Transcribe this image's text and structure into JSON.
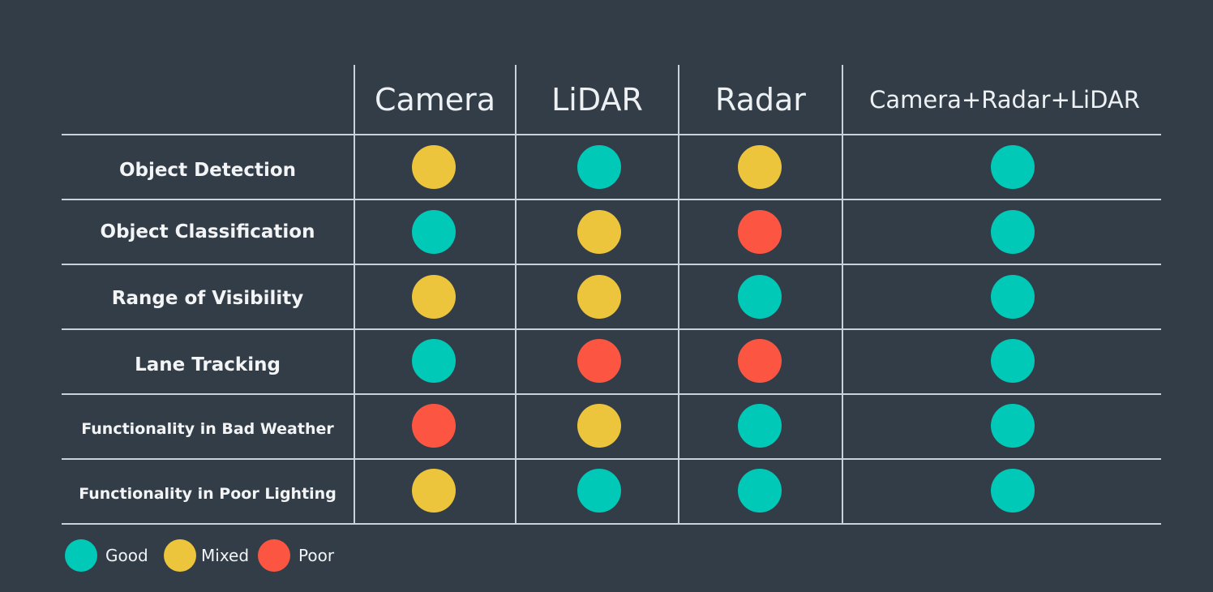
{
  "colors": {
    "good": "#00c9b7",
    "mixed": "#ecc53c",
    "poor": "#fc5642",
    "background": "#323d48",
    "grid": "#c8d2db"
  },
  "columns": [
    "Camera",
    "LiDAR",
    "Radar",
    "Camera+Radar+LiDAR"
  ],
  "rows": [
    {
      "label": "Object Detection",
      "ratings": [
        "mixed",
        "good",
        "mixed",
        "good"
      ]
    },
    {
      "label": "Object Classification",
      "ratings": [
        "good",
        "mixed",
        "poor",
        "good"
      ]
    },
    {
      "label": "Range of Visibility",
      "ratings": [
        "mixed",
        "mixed",
        "good",
        "good"
      ]
    },
    {
      "label": "Lane Tracking",
      "ratings": [
        "good",
        "poor",
        "poor",
        "good"
      ]
    },
    {
      "label": "Functionality in Bad Weather",
      "ratings": [
        "poor",
        "mixed",
        "good",
        "good"
      ]
    },
    {
      "label": "Functionality in Poor Lighting",
      "ratings": [
        "mixed",
        "good",
        "good",
        "good"
      ]
    }
  ],
  "legend": [
    {
      "key": "good",
      "label": "Good"
    },
    {
      "key": "mixed",
      "label": "Mixed"
    },
    {
      "key": "poor",
      "label": "Poor"
    }
  ]
}
